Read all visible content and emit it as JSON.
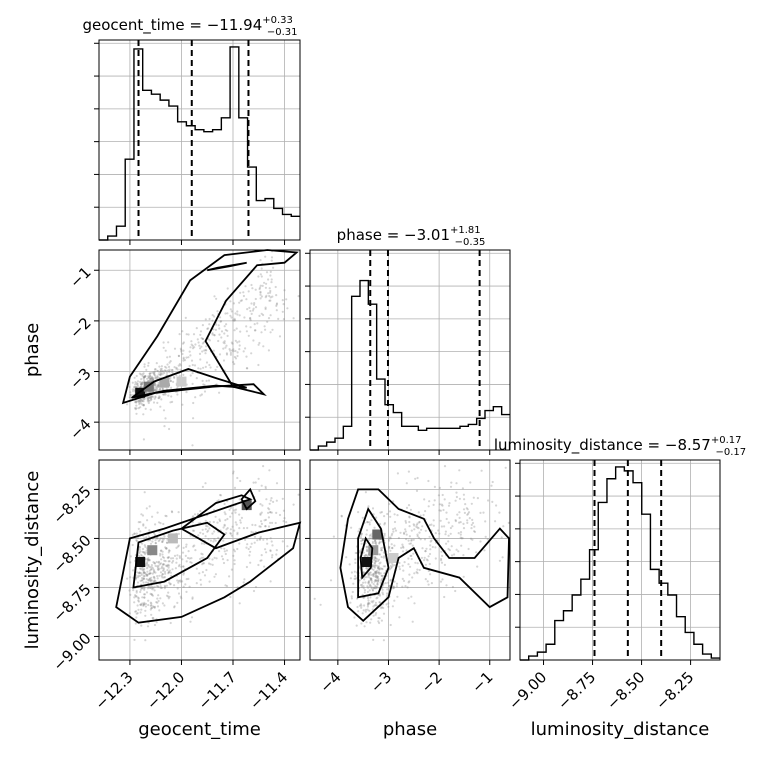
{
  "chart_data": {
    "type": "corner",
    "parameters": [
      "geocent_time",
      "phase",
      "luminosity_distance"
    ],
    "titles": [
      {
        "param": "geocent_time",
        "label": "geocent_time = ",
        "median": "−11.94",
        "plus": "+0.33",
        "minus": "−0.31"
      },
      {
        "param": "phase",
        "label": "phase = ",
        "median": "−3.01",
        "plus": "+1.81",
        "minus": "−0.35"
      },
      {
        "param": "luminosity_distance",
        "label": "luminosity_distance = ",
        "median": "−8.57",
        "plus": "+0.17",
        "minus": "−0.17"
      }
    ],
    "ranges": {
      "geocent_time": [
        -12.48,
        -11.31
      ],
      "phase": [
        -4.55,
        -0.6
      ],
      "luminosity_distance": [
        -9.12,
        -8.1
      ]
    },
    "ticks": {
      "geocent_time": [
        -12.3,
        -12.0,
        -11.7,
        -11.4
      ],
      "phase": [
        -4,
        -3,
        -2,
        -1
      ],
      "luminosity_distance": [
        -9.0,
        -8.75,
        -8.5,
        -8.25
      ]
    },
    "tick_labels": {
      "geocent_time": [
        "−12.3",
        "−12.0",
        "−11.7",
        "−11.4"
      ],
      "phase": [
        "−4",
        "−3",
        "−2",
        "−1"
      ],
      "luminosity_distance": [
        "−9.00",
        "−8.75",
        "−8.50",
        "−8.25"
      ]
    },
    "quantiles": {
      "geocent_time": [
        -12.25,
        -11.94,
        -11.61
      ],
      "phase": [
        -3.36,
        -3.01,
        -1.2
      ],
      "luminosity_distance": [
        -8.74,
        -8.57,
        -8.4
      ]
    },
    "histograms": {
      "geocent_time": [
        0,
        0.02,
        0.07,
        0.41,
        0.97,
        0.76,
        0.74,
        0.71,
        0.68,
        0.6,
        0.58,
        0.56,
        0.55,
        0.56,
        0.62,
        0.98,
        0.62,
        0.37,
        0.2,
        0.21,
        0.16,
        0.13,
        0.12
      ],
      "phase": [
        0,
        0.02,
        0.04,
        0.06,
        0.12,
        0.78,
        0.86,
        0.74,
        0.36,
        0.23,
        0.19,
        0.12,
        0.12,
        0.1,
        0.11,
        0.11,
        0.11,
        0.11,
        0.12,
        0.13,
        0.16,
        0.2,
        0.22,
        0.18
      ],
      "luminosity_distance": [
        0,
        0.02,
        0.04,
        0.08,
        0.2,
        0.25,
        0.33,
        0.41,
        0.56,
        0.8,
        0.92,
        0.98,
        0.96,
        0.9,
        0.74,
        0.46,
        0.39,
        0.33,
        0.22,
        0.14,
        0.08,
        0.03,
        0.01
      ]
    },
    "grid": true,
    "axis_labels": {
      "x": [
        "geocent_time",
        "phase",
        "luminosity_distance"
      ],
      "y": [
        "phase",
        "luminosity_distance"
      ]
    }
  }
}
